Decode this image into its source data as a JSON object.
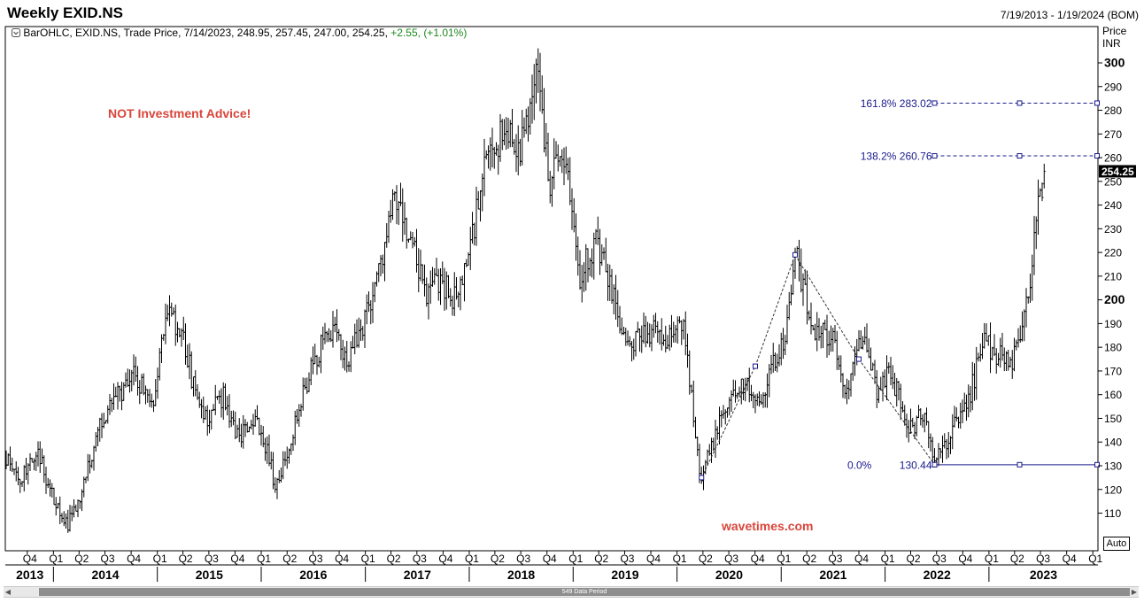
{
  "window": {
    "title": "Weekly EXID.NS",
    "date_range": "7/19/2013 - 1/19/2024 (BOM)",
    "info": {
      "text": "BarOHLC, EXID.NS, Trade Price, 7/14/2023, 248.95, 257.45, 247.00, 254.25,",
      "change": "+2.55, (+1.01%)"
    },
    "price_header": [
      "Price",
      "INR"
    ],
    "auto_label": "Auto",
    "scroll_label": "549 Data Period",
    "scroll_left_icon": "scroll-left-arrow-icon",
    "scroll_right_icon": "scroll-right-arrow-icon",
    "menu_icon": "chart-menu-icon",
    "watermarks": {
      "disclaimer": "NOT Investment Advice!",
      "site": "wavetimes.com",
      "color": "#d9453b"
    },
    "last_price_label": "254.25"
  },
  "chart_data": {
    "type": "bar",
    "subtype": "ohlc",
    "symbol": "EXID.NS",
    "interval": "weekly",
    "currency": "INR",
    "x_range": [
      "2013-07-19",
      "2024-01-19"
    ],
    "ylim": [
      100,
      310
    ],
    "y_ticks": [
      110,
      120,
      130,
      140,
      150,
      160,
      170,
      180,
      190,
      200,
      210,
      220,
      230,
      240,
      250,
      260,
      270,
      280,
      290,
      300
    ],
    "y_ticks_bold": [
      200,
      300
    ],
    "last_price": 254.25,
    "last_bar": {
      "date": "2023-07-14",
      "open": 248.95,
      "high": 257.45,
      "low": 247.0,
      "close": 254.25
    },
    "x_axis": {
      "quarters": [
        {
          "date": "2013-10-01",
          "label": "Q4"
        },
        {
          "date": "2014-01-01",
          "label": "Q1"
        },
        {
          "date": "2014-04-01",
          "label": "Q2"
        },
        {
          "date": "2014-07-01",
          "label": "Q3"
        },
        {
          "date": "2014-10-01",
          "label": "Q4"
        },
        {
          "date": "2015-01-01",
          "label": "Q1"
        },
        {
          "date": "2015-04-01",
          "label": "Q2"
        },
        {
          "date": "2015-07-01",
          "label": "Q3"
        },
        {
          "date": "2015-10-01",
          "label": "Q4"
        },
        {
          "date": "2016-01-01",
          "label": "Q1"
        },
        {
          "date": "2016-04-01",
          "label": "Q2"
        },
        {
          "date": "2016-07-01",
          "label": "Q3"
        },
        {
          "date": "2016-10-01",
          "label": "Q4"
        },
        {
          "date": "2017-01-01",
          "label": "Q1"
        },
        {
          "date": "2017-04-01",
          "label": "Q2"
        },
        {
          "date": "2017-07-01",
          "label": "Q3"
        },
        {
          "date": "2017-10-01",
          "label": "Q4"
        },
        {
          "date": "2018-01-01",
          "label": "Q1"
        },
        {
          "date": "2018-04-01",
          "label": "Q2"
        },
        {
          "date": "2018-07-01",
          "label": "Q3"
        },
        {
          "date": "2018-10-01",
          "label": "Q4"
        },
        {
          "date": "2019-01-01",
          "label": "Q1"
        },
        {
          "date": "2019-04-01",
          "label": "Q2"
        },
        {
          "date": "2019-07-01",
          "label": "Q3"
        },
        {
          "date": "2019-10-01",
          "label": "Q4"
        },
        {
          "date": "2020-01-01",
          "label": "Q1"
        },
        {
          "date": "2020-04-01",
          "label": "Q2"
        },
        {
          "date": "2020-07-01",
          "label": "Q3"
        },
        {
          "date": "2020-10-01",
          "label": "Q4"
        },
        {
          "date": "2021-01-01",
          "label": "Q1"
        },
        {
          "date": "2021-04-01",
          "label": "Q2"
        },
        {
          "date": "2021-07-01",
          "label": "Q3"
        },
        {
          "date": "2021-10-01",
          "label": "Q4"
        },
        {
          "date": "2022-01-01",
          "label": "Q1"
        },
        {
          "date": "2022-04-01",
          "label": "Q2"
        },
        {
          "date": "2022-07-01",
          "label": "Q3"
        },
        {
          "date": "2022-10-01",
          "label": "Q4"
        },
        {
          "date": "2023-01-01",
          "label": "Q1"
        },
        {
          "date": "2023-04-01",
          "label": "Q2"
        },
        {
          "date": "2023-07-01",
          "label": "Q3"
        },
        {
          "date": "2023-10-01",
          "label": "Q4"
        },
        {
          "date": "2024-01-01",
          "label": "Q1"
        }
      ],
      "years": [
        {
          "label": "2013",
          "start": "2013-07-19",
          "end": "2014-01-01"
        },
        {
          "label": "2014",
          "start": "2014-01-01",
          "end": "2015-01-01"
        },
        {
          "label": "2015",
          "start": "2015-01-01",
          "end": "2016-01-01"
        },
        {
          "label": "2016",
          "start": "2016-01-01",
          "end": "2017-01-01"
        },
        {
          "label": "2017",
          "start": "2017-01-01",
          "end": "2018-01-01"
        },
        {
          "label": "2018",
          "start": "2018-01-01",
          "end": "2019-01-01"
        },
        {
          "label": "2019",
          "start": "2019-01-01",
          "end": "2020-01-01"
        },
        {
          "label": "2020",
          "start": "2020-01-01",
          "end": "2021-01-01"
        },
        {
          "label": "2021",
          "start": "2021-01-01",
          "end": "2022-01-01"
        },
        {
          "label": "2022",
          "start": "2022-01-01",
          "end": "2023-01-01"
        },
        {
          "label": "2023",
          "start": "2023-01-01",
          "end": "2024-01-19"
        }
      ]
    },
    "price_path": [
      [
        "2013-07-19",
        132
      ],
      [
        "2013-09-06",
        125
      ],
      [
        "2013-11-08",
        136
      ],
      [
        "2014-01-03",
        115
      ],
      [
        "2014-02-21",
        105
      ],
      [
        "2014-04-18",
        122
      ],
      [
        "2014-06-13",
        148
      ],
      [
        "2014-08-15",
        160
      ],
      [
        "2014-10-10",
        168
      ],
      [
        "2014-12-19",
        158
      ],
      [
        "2015-02-06",
        195
      ],
      [
        "2015-04-03",
        182
      ],
      [
        "2015-06-12",
        148
      ],
      [
        "2015-08-21",
        160
      ],
      [
        "2015-10-09",
        142
      ],
      [
        "2015-12-11",
        152
      ],
      [
        "2016-02-26",
        120
      ],
      [
        "2016-04-08",
        140
      ],
      [
        "2016-06-17",
        168
      ],
      [
        "2016-08-26",
        188
      ],
      [
        "2016-11-04",
        175
      ],
      [
        "2016-12-23",
        190
      ],
      [
        "2017-02-17",
        212
      ],
      [
        "2017-04-14",
        243
      ],
      [
        "2017-06-09",
        225
      ],
      [
        "2017-07-28",
        202
      ],
      [
        "2017-09-22",
        210
      ],
      [
        "2017-11-17",
        198
      ],
      [
        "2018-01-12",
        228
      ],
      [
        "2018-03-09",
        262
      ],
      [
        "2018-05-11",
        272
      ],
      [
        "2018-07-06",
        265
      ],
      [
        "2018-08-24",
        298
      ],
      [
        "2018-10-12",
        253
      ],
      [
        "2018-11-30",
        263
      ],
      [
        "2019-01-25",
        212
      ],
      [
        "2019-03-22",
        225
      ],
      [
        "2019-05-24",
        200
      ],
      [
        "2019-07-19",
        178
      ],
      [
        "2019-09-20",
        188
      ],
      [
        "2019-11-22",
        183
      ],
      [
        "2020-01-24",
        190
      ],
      [
        "2020-03-27",
        125
      ],
      [
        "2020-05-29",
        148
      ],
      [
        "2020-08-07",
        165
      ],
      [
        "2020-10-16",
        158
      ],
      [
        "2021-01-15",
        185
      ],
      [
        "2021-02-19",
        219
      ],
      [
        "2021-04-16",
        190
      ],
      [
        "2021-06-25",
        185
      ],
      [
        "2021-08-20",
        160
      ],
      [
        "2021-10-01",
        188
      ],
      [
        "2021-12-03",
        162
      ],
      [
        "2022-01-21",
        170
      ],
      [
        "2022-03-25",
        145
      ],
      [
        "2022-05-20",
        152
      ],
      [
        "2022-06-24",
        130.44
      ],
      [
        "2022-08-26",
        145
      ],
      [
        "2022-10-28",
        160
      ],
      [
        "2022-12-09",
        183
      ],
      [
        "2023-01-27",
        178
      ],
      [
        "2023-03-24",
        175
      ],
      [
        "2023-04-28",
        190
      ],
      [
        "2023-05-26",
        210
      ],
      [
        "2023-06-16",
        232
      ],
      [
        "2023-07-14",
        254.25
      ]
    ],
    "elliott_path": [
      [
        "2020-03-27",
        125
      ],
      [
        "2020-10-02",
        172
      ],
      [
        "2021-02-19",
        219
      ],
      [
        "2021-10-01",
        175
      ],
      [
        "2022-06-24",
        130.44
      ]
    ],
    "fibonacci": {
      "anchor_date": "2022-06-24",
      "levels": [
        {
          "pct": "161.8%",
          "value": 283.02,
          "label": "283.02"
        },
        {
          "pct": "138.2%",
          "value": 260.76,
          "label": "260.76"
        },
        {
          "pct": "0.0%",
          "value": 130.44,
          "label": "130.44"
        }
      ],
      "color": "#1a1a8c"
    },
    "bar_color": "#000000",
    "legend": "none",
    "grid": false
  }
}
